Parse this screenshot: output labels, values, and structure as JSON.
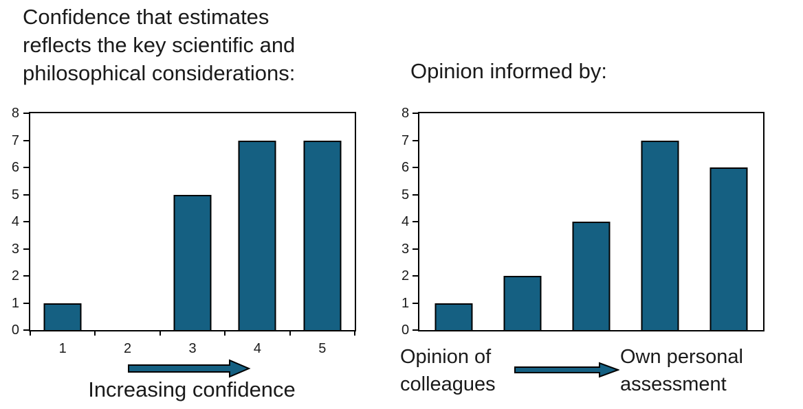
{
  "figure": {
    "background_color": "#ffffff",
    "bar_fill_color": "#156082",
    "bar_stroke_color": "#000000",
    "axis_color": "#000000",
    "text_color": "#1a1a1a"
  },
  "chart_data": [
    {
      "type": "bar",
      "title": "Confidence that estimates reflects the key scientific and philosophical considerations:",
      "title_lines": [
        "Confidence that estimates",
        "reflects the key scientific and",
        "philosophical considerations:"
      ],
      "categories": [
        "1",
        "2",
        "3",
        "4",
        "5"
      ],
      "values": [
        1,
        0,
        5,
        7,
        7
      ],
      "xlabel": "",
      "ylabel": "",
      "ylim": [
        0,
        8
      ],
      "ytick_step": 1,
      "grid": false,
      "legend": "none",
      "x_tick_marks": true,
      "annotation": {
        "type": "block-arrow-right",
        "label": "Increasing confidence"
      }
    },
    {
      "type": "bar",
      "title": "Opinion informed by:",
      "categories": [
        "",
        "",
        "",
        "",
        ""
      ],
      "values": [
        1,
        2,
        4,
        7,
        6
      ],
      "xlabel": "",
      "ylabel": "",
      "ylim": [
        0,
        8
      ],
      "ytick_step": 1,
      "grid": false,
      "legend": "none",
      "x_tick_marks": false,
      "annotation": {
        "type": "block-arrow-right",
        "left_label": "Opinion of colleagues",
        "right_label": "Own personal assessment"
      }
    }
  ]
}
